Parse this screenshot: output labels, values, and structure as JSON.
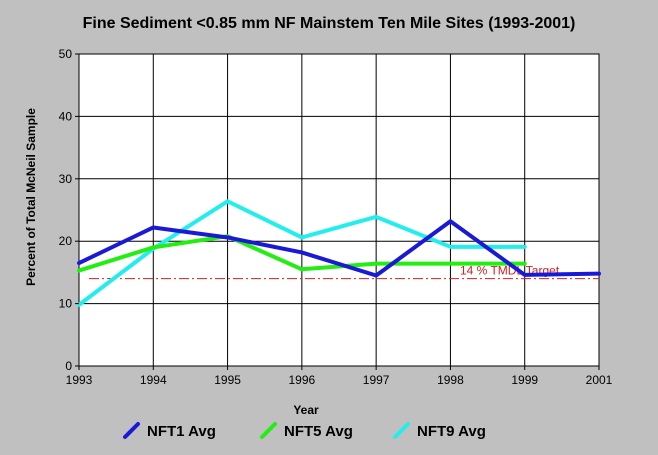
{
  "chart_data": {
    "type": "line",
    "title": "Fine Sediment <0.85 mm NF Mainstem Ten Mile Sites (1993-2001)",
    "xlabel": "Year",
    "ylabel": "Percent of Total McNeil Sample",
    "xlim": [
      1993,
      2001
    ],
    "ylim": [
      0,
      50
    ],
    "x_ticks": [
      "1993",
      "1994",
      "1995",
      "1996",
      "1997",
      "1998",
      "1999",
      "2001"
    ],
    "y_ticks": [
      "0",
      "10",
      "20",
      "30",
      "40",
      "50"
    ],
    "grid": true,
    "legend_position": "bottom",
    "series": [
      {
        "name": "NFT1 Avg",
        "color": "#1a1ad6",
        "points": [
          [
            0,
            16.5
          ],
          [
            1,
            22.2
          ],
          [
            2,
            20.6
          ],
          [
            3,
            18.2
          ],
          [
            4,
            14.5
          ],
          [
            5,
            23.2
          ],
          [
            6,
            14.6
          ],
          [
            7,
            14.8
          ]
        ]
      },
      {
        "name": "NFT5 Avg",
        "color": "#22ee11",
        "points": [
          [
            0,
            15.3
          ],
          [
            1,
            19.0
          ],
          [
            2,
            20.8
          ],
          [
            3,
            15.5
          ],
          [
            4,
            16.4
          ],
          [
            5,
            16.4
          ],
          [
            6,
            16.4
          ]
        ]
      },
      {
        "name": "NFT9 Avg",
        "color": "#22eeee",
        "points": [
          [
            0,
            9.8
          ],
          [
            1,
            18.8
          ],
          [
            2,
            26.4
          ],
          [
            3,
            20.6
          ],
          [
            4,
            23.9
          ],
          [
            5,
            19.1
          ],
          [
            6,
            19.1
          ]
        ]
      }
    ],
    "reference_line": {
      "label": "14 % TMDL Target",
      "value": 14,
      "color": "#cc2222"
    }
  }
}
